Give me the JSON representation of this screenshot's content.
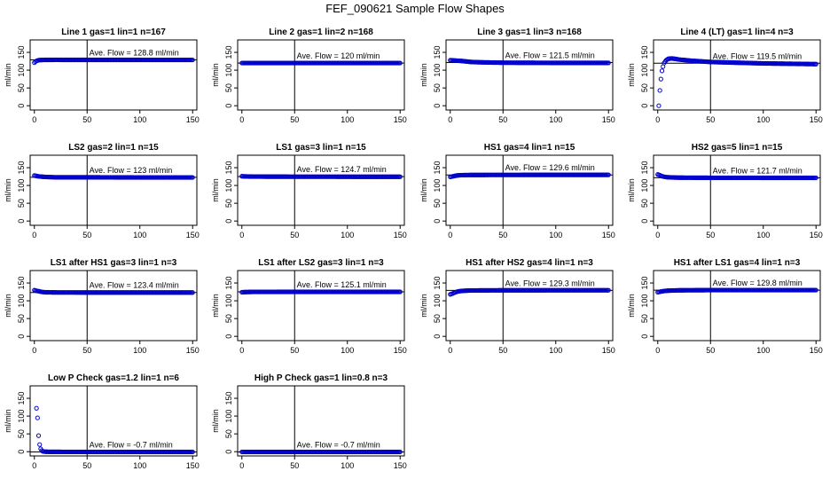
{
  "page_title": "FEF_090621  Sample Flow Shapes",
  "axes": {
    "ylabel": "ml/min",
    "xticks": [
      0,
      50,
      100,
      150
    ],
    "yticks": [
      0,
      50,
      100,
      150
    ],
    "xlim": [
      -4,
      154
    ],
    "ylim": [
      -12,
      185
    ],
    "vline_x": 50
  },
  "colors": {
    "points": "#0000cc",
    "axes": "#000000",
    "text": "#000000"
  },
  "chart_data": [
    {
      "type": "scatter",
      "title": "Line 1 gas=1 lin=1 n=167",
      "annotation": "Ave. Flow =  128.8  ml/min",
      "mean": 128.8,
      "points": [
        [
          0,
          121
        ],
        [
          1,
          124
        ],
        [
          2,
          126
        ],
        [
          3,
          127
        ],
        [
          4,
          128
        ],
        [
          6,
          128.5
        ],
        [
          10,
          128.8
        ],
        [
          20,
          129
        ],
        [
          50,
          128.8
        ],
        [
          100,
          128.8
        ],
        [
          150,
          128.7
        ]
      ]
    },
    {
      "type": "scatter",
      "title": "Line 2 gas=1 lin=2 n=168",
      "annotation": "Ave. Flow =  120  ml/min",
      "mean": 120,
      "points": [
        [
          0,
          120
        ],
        [
          50,
          120
        ],
        [
          100,
          120
        ],
        [
          150,
          120
        ]
      ]
    },
    {
      "type": "scatter",
      "title": "Line 3 gas=1 lin=3 n=168",
      "annotation": "Ave. Flow =  121.5  ml/min",
      "mean": 121.5,
      "points": [
        [
          0,
          128
        ],
        [
          5,
          127
        ],
        [
          10,
          126
        ],
        [
          20,
          123
        ],
        [
          30,
          122
        ],
        [
          50,
          121
        ],
        [
          100,
          120.5
        ],
        [
          150,
          120.5
        ]
      ]
    },
    {
      "type": "scatter",
      "title": "Line 4 (LT) gas=1 lin=4 n=3",
      "annotation": "Ave. Flow =  119.5  ml/min",
      "mean": 119.5,
      "points": [
        [
          1,
          0
        ],
        [
          2,
          43
        ],
        [
          3,
          75
        ],
        [
          4,
          98
        ],
        [
          5,
          110
        ],
        [
          6,
          120
        ],
        [
          8,
          128
        ],
        [
          10,
          132
        ],
        [
          13,
          133
        ],
        [
          16,
          132
        ],
        [
          20,
          130
        ],
        [
          30,
          127
        ],
        [
          50,
          123
        ],
        [
          100,
          119
        ],
        [
          150,
          117
        ]
      ]
    },
    {
      "type": "scatter",
      "title": "LS2 gas=2 lin=1 n=15",
      "annotation": "Ave. Flow =  123  ml/min",
      "mean": 123,
      "points": [
        [
          0,
          128
        ],
        [
          3,
          126
        ],
        [
          6,
          125
        ],
        [
          10,
          124
        ],
        [
          20,
          123
        ],
        [
          50,
          123
        ],
        [
          100,
          122.5
        ],
        [
          150,
          122.5
        ]
      ]
    },
    {
      "type": "scatter",
      "title": "LS1 gas=3 lin=1 n=15",
      "annotation": "Ave. Flow =  124.7  ml/min",
      "mean": 124.7,
      "points": [
        [
          0,
          126
        ],
        [
          3,
          125.5
        ],
        [
          10,
          125
        ],
        [
          50,
          124.7
        ],
        [
          100,
          124.6
        ],
        [
          150,
          124.5
        ]
      ]
    },
    {
      "type": "scatter",
      "title": "HS1 gas=4 lin=1 n=15",
      "annotation": "Ave. Flow =  129.6  ml/min",
      "mean": 129.6,
      "points": [
        [
          0,
          124
        ],
        [
          3,
          126
        ],
        [
          6,
          128
        ],
        [
          10,
          129
        ],
        [
          20,
          129.5
        ],
        [
          50,
          129.7
        ],
        [
          100,
          129.8
        ],
        [
          150,
          129.8
        ]
      ]
    },
    {
      "type": "scatter",
      "title": "HS2 gas=5 lin=1 n=15",
      "annotation": "Ave. Flow =  121.7  ml/min",
      "mean": 121.7,
      "points": [
        [
          0,
          131
        ],
        [
          2,
          129
        ],
        [
          4,
          126
        ],
        [
          7,
          124
        ],
        [
          10,
          123
        ],
        [
          20,
          122
        ],
        [
          50,
          121.6
        ],
        [
          100,
          121.5
        ],
        [
          150,
          121.5
        ]
      ]
    },
    {
      "type": "scatter",
      "title": "LS1 after HS1 gas=3 lin=1 n=3",
      "annotation": "Ave. Flow =  123.4  ml/min",
      "mean": 123.4,
      "points": [
        [
          0,
          130
        ],
        [
          2,
          128
        ],
        [
          4,
          127
        ],
        [
          7,
          125
        ],
        [
          10,
          124
        ],
        [
          20,
          123.5
        ],
        [
          50,
          123.3
        ],
        [
          100,
          123.3
        ],
        [
          150,
          123.2
        ]
      ]
    },
    {
      "type": "scatter",
      "title": "LS1 after LS2 gas=3 lin=1 n=3",
      "annotation": "Ave. Flow =  125.1  ml/min",
      "mean": 125.1,
      "points": [
        [
          0,
          124
        ],
        [
          3,
          124.5
        ],
        [
          10,
          125
        ],
        [
          50,
          125.1
        ],
        [
          100,
          125.2
        ],
        [
          150,
          125.2
        ]
      ]
    },
    {
      "type": "scatter",
      "title": "HS1 after HS2 gas=4 lin=1 n=3",
      "annotation": "Ave. Flow =  129.3  ml/min",
      "mean": 129.3,
      "points": [
        [
          0,
          118
        ],
        [
          2,
          120
        ],
        [
          4,
          123
        ],
        [
          7,
          126
        ],
        [
          10,
          127.5
        ],
        [
          15,
          128.5
        ],
        [
          20,
          129
        ],
        [
          50,
          129.5
        ],
        [
          100,
          129.6
        ],
        [
          150,
          129.6
        ]
      ]
    },
    {
      "type": "scatter",
      "title": "HS1 after LS1 gas=4 lin=1 n=3",
      "annotation": "Ave. Flow =  129.8  ml/min",
      "mean": 129.8,
      "points": [
        [
          0,
          124
        ],
        [
          3,
          126
        ],
        [
          6,
          127.5
        ],
        [
          10,
          128.5
        ],
        [
          20,
          129.5
        ],
        [
          50,
          130
        ],
        [
          100,
          130
        ],
        [
          150,
          130
        ]
      ]
    },
    {
      "type": "scatter",
      "title": "Low P Check gas=1.2 lin=1 n=6",
      "annotation": "Ave. Flow =  -0.7  ml/min",
      "mean": -0.7,
      "points": [
        [
          2,
          122
        ],
        [
          3,
          95
        ],
        [
          4,
          45
        ],
        [
          5,
          20
        ],
        [
          6,
          8
        ],
        [
          7,
          3
        ],
        [
          8,
          1
        ],
        [
          10,
          0
        ],
        [
          15,
          -0.5
        ],
        [
          50,
          -0.7
        ],
        [
          100,
          -0.7
        ],
        [
          150,
          -0.7
        ]
      ]
    },
    {
      "type": "scatter",
      "title": "High P Check gas=1 lin=0.8 n=3",
      "annotation": "Ave. Flow =  -0.7  ml/min",
      "mean": -0.7,
      "points": [
        [
          0,
          -0.7
        ],
        [
          50,
          -0.7
        ],
        [
          100,
          -0.7
        ],
        [
          150,
          -0.7
        ]
      ]
    }
  ]
}
